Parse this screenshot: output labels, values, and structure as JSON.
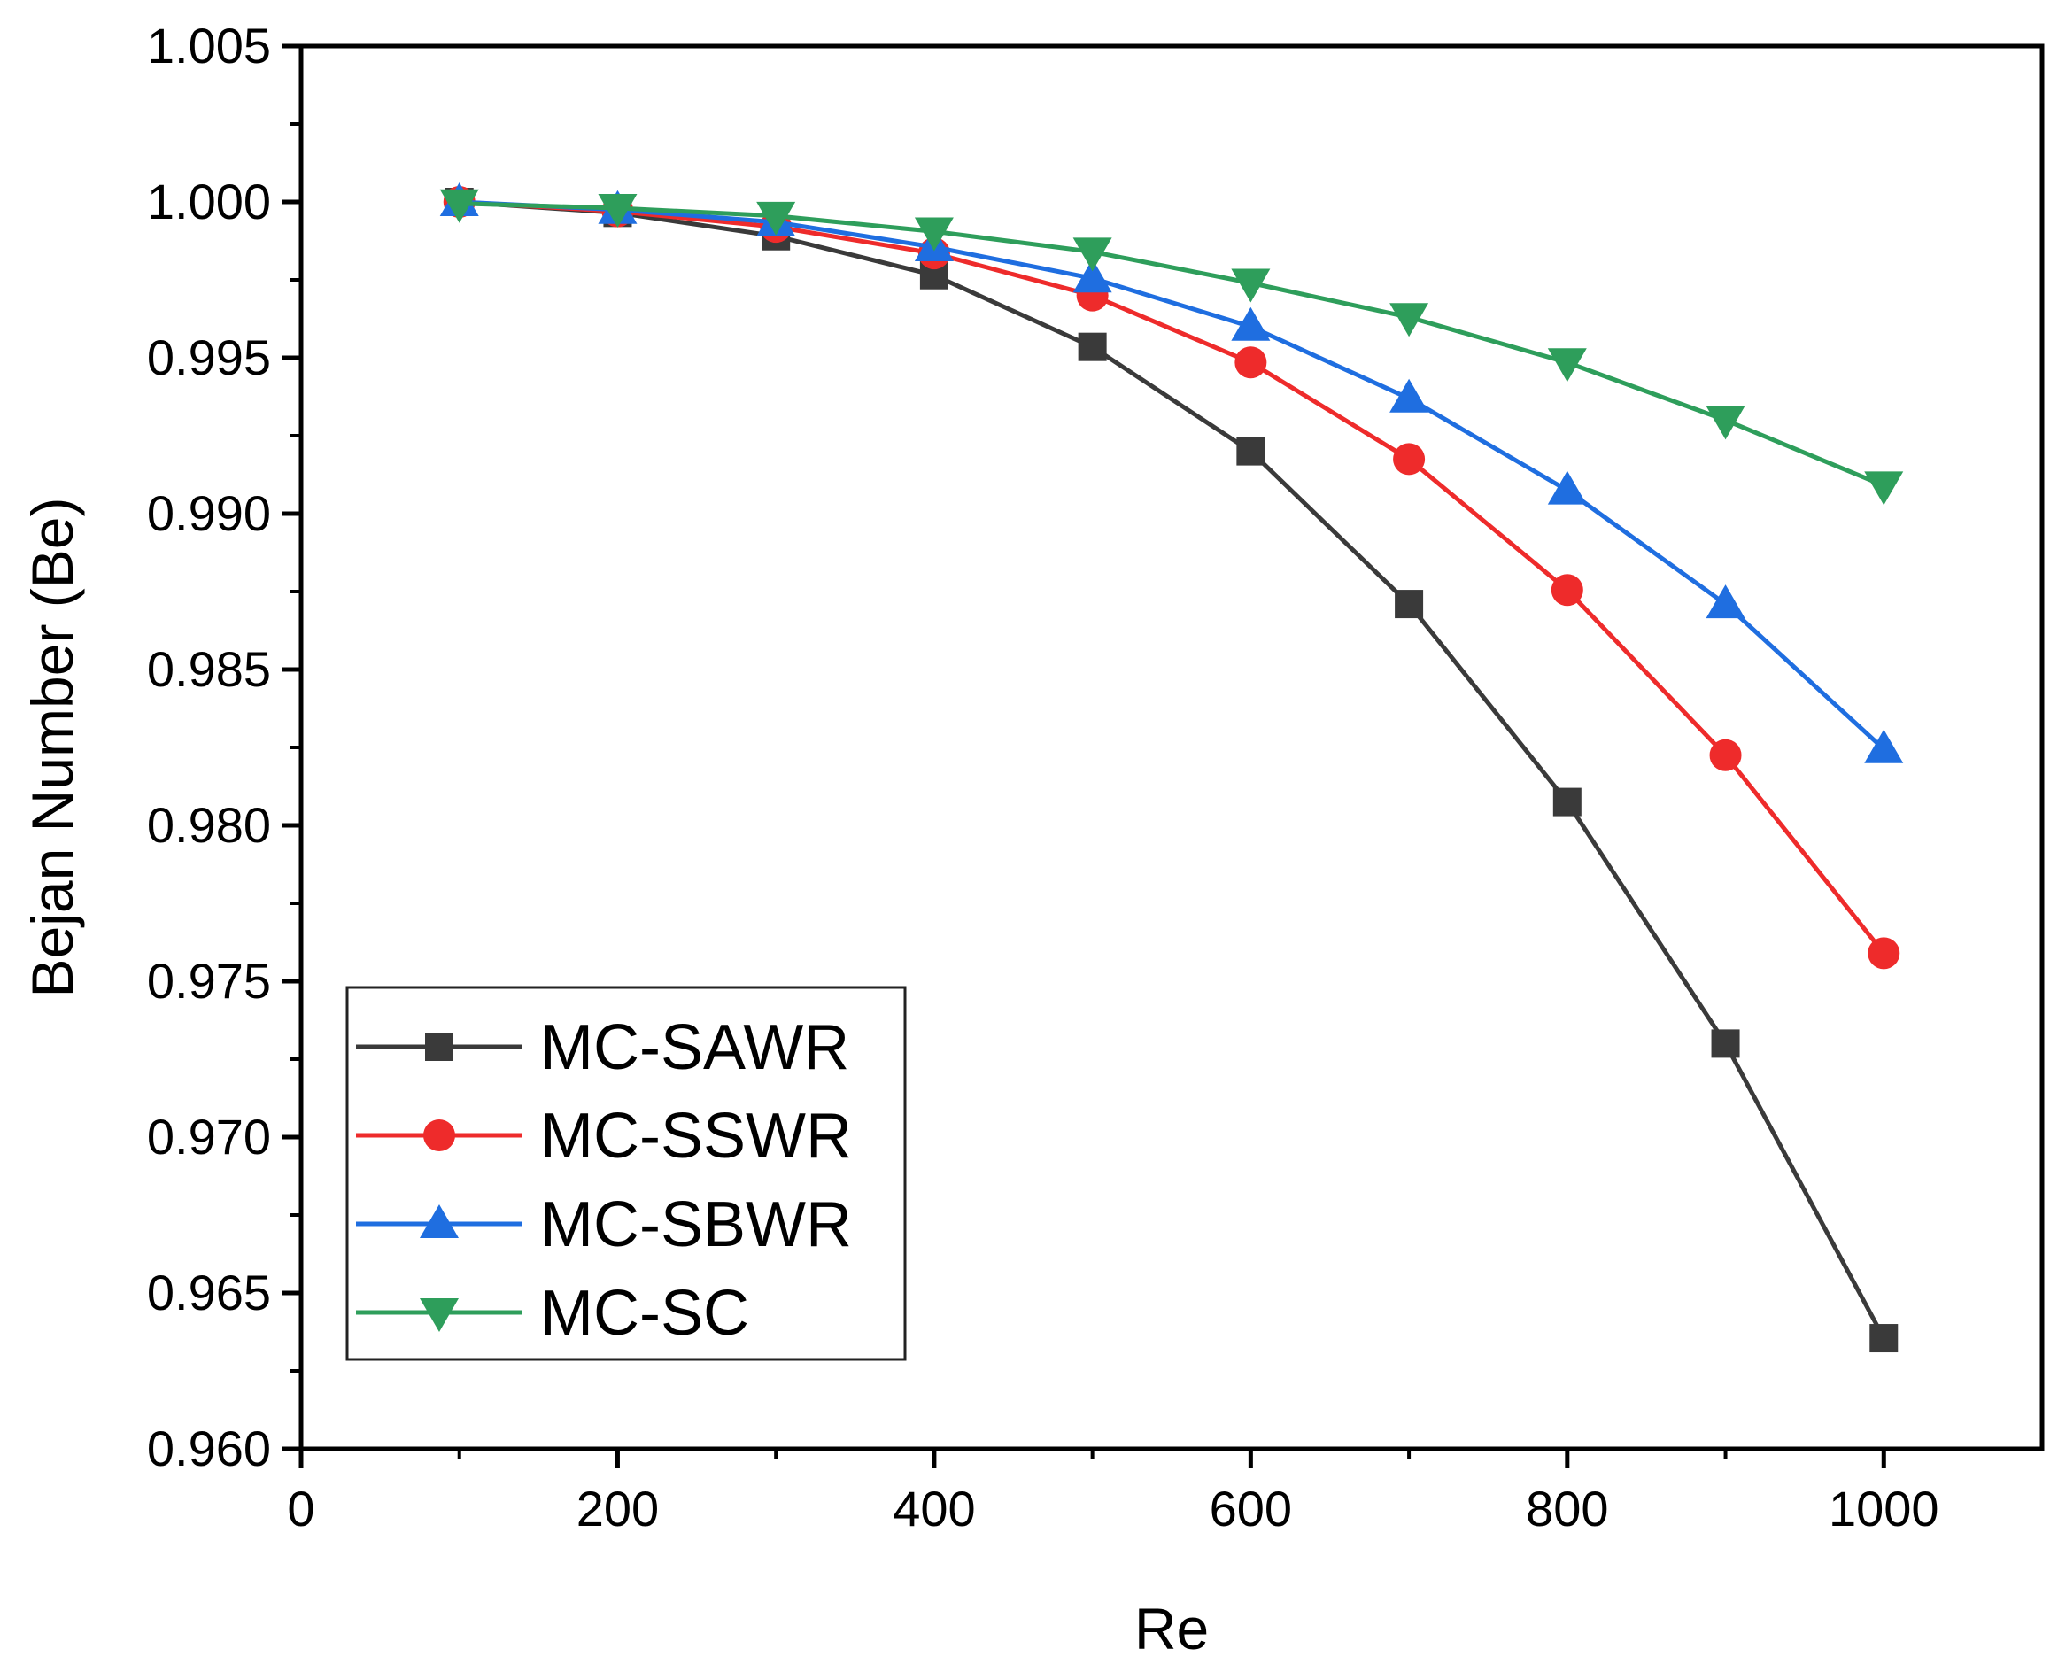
{
  "chart_data": {
    "type": "line",
    "title": "",
    "xlabel": "Re",
    "ylabel": "Bejan Number (Be)",
    "xlim": [
      0,
      1100
    ],
    "ylim": [
      0.96,
      1.005
    ],
    "x_ticks": [
      0,
      200,
      400,
      600,
      800,
      1000
    ],
    "x_tick_labels": [
      "0",
      "200",
      "400",
      "600",
      "800",
      "1000"
    ],
    "y_ticks": [
      0.96,
      0.965,
      0.97,
      0.975,
      0.98,
      0.985,
      0.99,
      0.995,
      1.0,
      1.005
    ],
    "y_tick_labels": [
      "0.960",
      "0.965",
      "0.970",
      "0.975",
      "0.980",
      "0.985",
      "0.990",
      "0.995",
      "1.000",
      "1.005"
    ],
    "x": [
      100,
      200,
      300,
      400,
      500,
      600,
      700,
      800,
      900,
      1000
    ],
    "series": [
      {
        "name": "MC-SAWR",
        "color": "#3a3a3a",
        "marker": "square",
        "values": [
          1.0,
          0.99965,
          0.9989,
          0.99765,
          0.99535,
          0.992,
          0.9871,
          0.98075,
          0.973,
          0.96355
        ]
      },
      {
        "name": "MC-SSWR",
        "color": "#ee2b2b",
        "marker": "circle",
        "values": [
          1.0,
          0.9997,
          0.9992,
          0.99835,
          0.997,
          0.99485,
          0.99175,
          0.98755,
          0.98225,
          0.9759
        ]
      },
      {
        "name": "MC-SBWR",
        "color": "#1f6ee0",
        "marker": "triangle-up",
        "values": [
          1.0,
          0.99975,
          0.99935,
          0.99855,
          0.99755,
          0.996,
          0.9937,
          0.99075,
          0.9871,
          0.98245
        ]
      },
      {
        "name": "MC-SC",
        "color": "#2e9e5b",
        "marker": "triangle-down",
        "values": [
          0.99995,
          0.9998,
          0.99955,
          0.99905,
          0.9984,
          0.9974,
          0.9963,
          0.99485,
          0.993,
          0.9909
        ]
      }
    ],
    "legend_position": "bottom-left",
    "grid": false
  }
}
